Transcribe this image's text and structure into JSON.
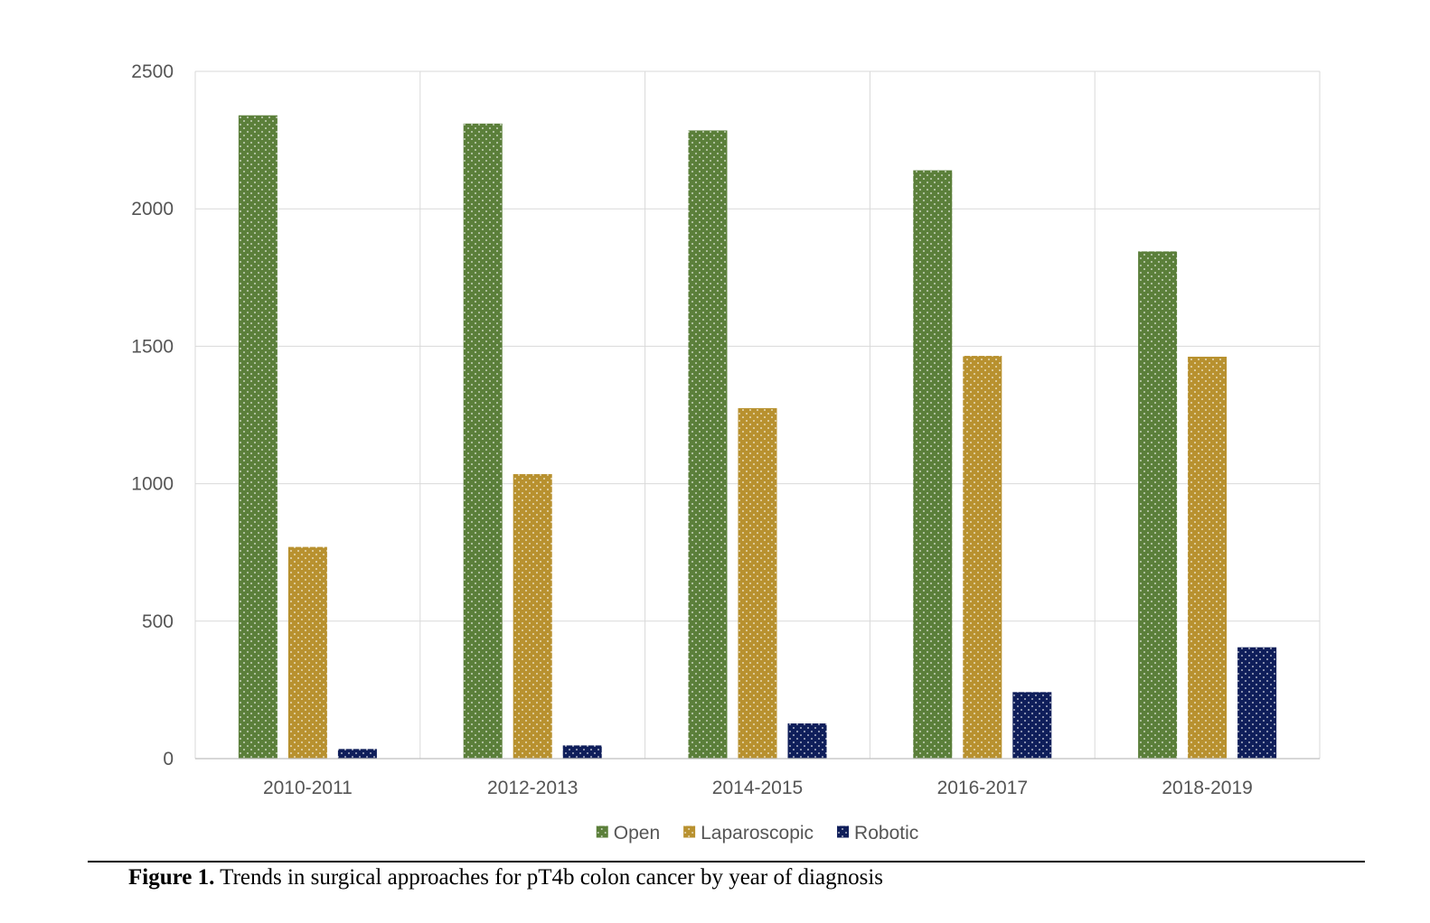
{
  "chart_data": {
    "type": "bar",
    "categories": [
      "2010-2011",
      "2012-2013",
      "2014-2015",
      "2016-2017",
      "2018-2019"
    ],
    "series": [
      {
        "name": "Open",
        "values": [
          2340,
          2310,
          2285,
          2140,
          1845
        ],
        "color": "#5b7f3a"
      },
      {
        "name": "Laparoscopic",
        "values": [
          770,
          1035,
          1275,
          1465,
          1462
        ],
        "color": "#b8912f"
      },
      {
        "name": "Robotic",
        "values": [
          35,
          48,
          128,
          242,
          405
        ],
        "color": "#0f1e5a"
      }
    ],
    "ylim": [
      0,
      2500
    ],
    "yticks": [
      0,
      500,
      1000,
      1500,
      2000,
      2500
    ],
    "grid": true,
    "legend_position": "bottom",
    "title": "",
    "xlabel": "",
    "ylabel": ""
  },
  "caption": {
    "label": "Figure 1.",
    "text": " Trends in surgical approaches for pT4b colon cancer by year of diagnosis"
  }
}
